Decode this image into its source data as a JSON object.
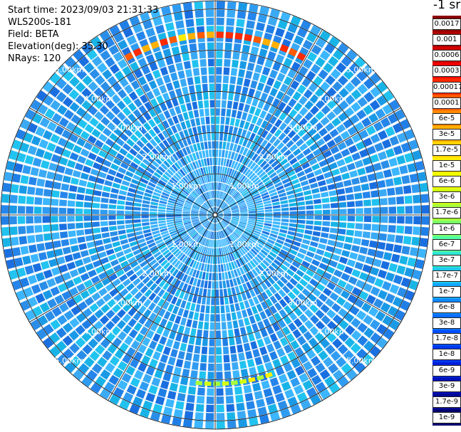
{
  "info": {
    "start_time": "Start time: 2023/09/03 21:31:33",
    "device": "WLS200s-181",
    "field": "Field: BETA",
    "elevation": "Elevation(deg): 35.30",
    "nrays": "NRays: 120"
  },
  "colorbar": {
    "title": "-1 sr",
    "labels": [
      "0.0017",
      "0.001",
      "0.0006",
      "0.0003",
      "0.00017",
      "0.0001",
      "6e-5",
      "3e-5",
      "1.7e-5",
      "1e-5",
      "6e-6",
      "3e-6",
      "1.7e-6",
      "1e-6",
      "6e-7",
      "3e-7",
      "1.7e-7",
      "1e-7",
      "6e-8",
      "3e-8",
      "1.7e-8",
      "1e-8",
      "6e-9",
      "3e-9",
      "1.7e-9",
      "1e-9"
    ],
    "colors": [
      "#8b0000",
      "#b00000",
      "#d40000",
      "#f00000",
      "#ff2a00",
      "#ff5a00",
      "#ff8a00",
      "#ffb000",
      "#ffd200",
      "#ffee00",
      "#f0ff00",
      "#d2ff12",
      "#a8ff3c",
      "#7dff66",
      "#52ffa3",
      "#2ee8d2",
      "#1fc8f0",
      "#12a8ff",
      "#1088ff",
      "#0a6cff",
      "#0050ff",
      "#0036f0",
      "#0020d8",
      "#0010b8",
      "#000896",
      "#000070"
    ]
  },
  "map": {
    "range_rings": [
      "1.00km",
      "2.00km",
      "3.00km",
      "4.00km",
      "5.00km"
    ],
    "rays": 120,
    "max_range_km": 5.2,
    "base_color": "#2a8ee8",
    "aerosol_arcs": [
      {
        "from_deg": 330,
        "to_deg": 30,
        "range_km": [
          4.3,
          4.45
        ],
        "level": "0.0001"
      },
      {
        "from_deg": 160,
        "to_deg": 185,
        "range_km": [
          4.05,
          4.15
        ],
        "level": "1e-5"
      }
    ]
  }
}
